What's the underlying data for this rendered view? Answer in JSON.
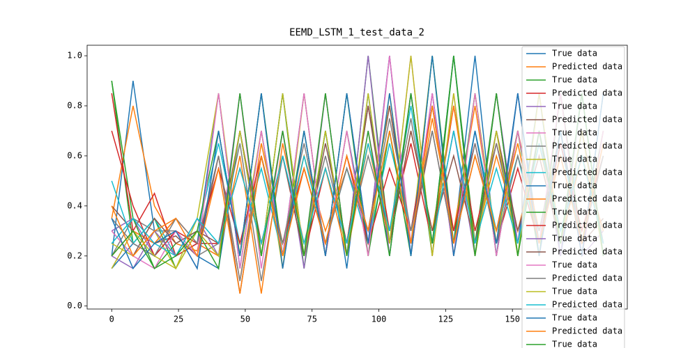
{
  "chart_data": {
    "type": "line",
    "title": "EEMD_LSTM_1_test_data_2",
    "x": [
      0,
      8,
      16,
      24,
      32,
      40,
      48,
      56,
      64,
      72,
      80,
      88,
      96,
      104,
      112,
      120,
      128,
      136,
      144,
      152,
      160,
      168,
      176,
      184
    ],
    "xlim": [
      -9.2,
      193
    ],
    "xticks": [
      0,
      25,
      50,
      75,
      100,
      125,
      150
    ],
    "ylim": [
      -0.012,
      1.042
    ],
    "yticks": [
      {
        "value": 0,
        "label": "0.0"
      },
      {
        "value": 0.2,
        "label": "0.2"
      },
      {
        "value": 0.4,
        "label": "0.4"
      },
      {
        "value": 0.6,
        "label": "0.6"
      },
      {
        "value": 0.8,
        "label": "0.8"
      },
      {
        "value": 1,
        "label": "1.0"
      }
    ],
    "legend": "upper right",
    "series": [
      {
        "name": "True data",
        "color": "#1f77b4",
        "values": [
          0.2,
          0.9,
          0.3,
          0.2,
          0.25,
          0.85,
          0.15,
          0.7,
          0.2,
          0.85,
          0.2,
          0.7,
          0.25,
          1.0,
          0.2,
          0.85,
          0.25,
          1.0,
          0.2,
          0.85,
          0.25,
          0.7,
          0.2,
          0.85
        ]
      },
      {
        "name": "Predicted data",
        "color": "#ff7f0e",
        "values": [
          0.35,
          0.8,
          0.4,
          0.25,
          0.22,
          0.6,
          0.1,
          0.65,
          0.25,
          0.6,
          0.3,
          0.55,
          0.3,
          0.8,
          0.25,
          0.75,
          0.3,
          0.8,
          0.25,
          0.7,
          0.3,
          0.6,
          0.25,
          0.7
        ]
      },
      {
        "name": "True data",
        "color": "#2ca02c",
        "values": [
          0.9,
          0.25,
          0.35,
          0.15,
          0.3,
          0.2,
          0.7,
          0.2,
          0.85,
          0.15,
          0.7,
          0.2,
          1.0,
          0.25,
          0.85,
          0.2,
          1.0,
          0.25,
          0.85,
          0.2,
          0.7,
          0.2,
          0.85,
          0.2
        ]
      },
      {
        "name": "Predicted data",
        "color": "#d62728",
        "values": [
          0.85,
          0.3,
          0.45,
          0.2,
          0.25,
          0.25,
          0.55,
          0.25,
          0.6,
          0.2,
          0.55,
          0.25,
          0.8,
          0.3,
          0.65,
          0.25,
          0.8,
          0.3,
          0.65,
          0.3,
          0.6,
          0.25,
          0.7,
          0.25
        ]
      },
      {
        "name": "True data",
        "color": "#9467bd",
        "values": [
          0.3,
          0.35,
          0.2,
          0.3,
          0.15,
          0.7,
          0.2,
          0.85,
          0.15,
          0.7,
          0.2,
          0.85,
          0.25,
          1.0,
          0.2,
          0.85,
          0.2,
          0.7,
          0.25,
          0.85,
          0.2,
          0.7,
          0.2,
          0.3
        ]
      },
      {
        "name": "Predicted data",
        "color": "#8c564b",
        "values": [
          0.4,
          0.3,
          0.25,
          0.28,
          0.2,
          0.6,
          0.05,
          0.6,
          0.2,
          0.55,
          0.25,
          0.6,
          0.3,
          0.8,
          0.25,
          0.7,
          0.25,
          0.6,
          0.3,
          0.7,
          0.25,
          0.6,
          0.25,
          0.35
        ]
      },
      {
        "name": "True data",
        "color": "#e377c2",
        "values": [
          0.15,
          0.3,
          0.25,
          0.35,
          0.25,
          0.2,
          0.85,
          0.15,
          0.7,
          0.2,
          0.85,
          0.2,
          0.7,
          0.25,
          1.0,
          0.2,
          0.85,
          0.2,
          0.85,
          0.2,
          0.85,
          0.25,
          0.7,
          0.2
        ]
      },
      {
        "name": "Predicted data",
        "color": "#7f7f7f",
        "values": [
          0.2,
          0.35,
          0.3,
          0.3,
          0.2,
          0.25,
          0.65,
          0.1,
          0.6,
          0.25,
          0.6,
          0.25,
          0.6,
          0.3,
          0.75,
          0.25,
          0.7,
          0.25,
          0.65,
          0.25,
          0.7,
          0.3,
          0.6,
          0.25
        ]
      },
      {
        "name": "True data",
        "color": "#bcbd22",
        "values": [
          0.25,
          0.2,
          0.3,
          0.15,
          0.35,
          0.85,
          0.2,
          0.7,
          0.15,
          0.85,
          0.2,
          0.7,
          0.2,
          0.85,
          0.25,
          1.0,
          0.2,
          0.85,
          0.25,
          0.7,
          0.2,
          0.85,
          0.2,
          0.7
        ]
      },
      {
        "name": "Predicted data",
        "color": "#17becf",
        "values": [
          0.5,
          0.25,
          0.35,
          0.2,
          0.3,
          0.65,
          0.25,
          0.55,
          0.2,
          0.6,
          0.25,
          0.55,
          0.25,
          0.65,
          0.3,
          0.8,
          0.25,
          0.7,
          0.3,
          0.6,
          0.25,
          0.65,
          0.25,
          0.6
        ]
      },
      {
        "name": "True data",
        "color": "#1f77b4",
        "values": [
          0.15,
          0.25,
          0.2,
          0.3,
          0.2,
          0.15,
          0.7,
          0.2,
          0.85,
          0.2,
          0.7,
          0.15,
          0.85,
          0.2,
          0.85,
          0.25,
          1.0,
          0.2,
          0.7,
          0.25,
          0.85,
          0.2,
          0.7,
          0.25
        ]
      },
      {
        "name": "Predicted data",
        "color": "#ff7f0e",
        "values": [
          0.2,
          0.3,
          0.25,
          0.35,
          0.25,
          0.2,
          0.6,
          0.05,
          0.65,
          0.25,
          0.55,
          0.2,
          0.65,
          0.25,
          0.7,
          0.3,
          0.8,
          0.25,
          0.6,
          0.3,
          0.65,
          0.25,
          0.6,
          0.3
        ]
      },
      {
        "name": "True data",
        "color": "#2ca02c",
        "values": [
          0.9,
          0.35,
          0.15,
          0.25,
          0.3,
          0.7,
          0.2,
          0.85,
          0.2,
          0.7,
          0.2,
          0.85,
          0.2,
          0.7,
          0.2,
          1.0,
          0.25,
          0.85,
          0.2,
          0.7,
          0.2,
          0.85,
          0.25,
          0.7
        ]
      },
      {
        "name": "Predicted data",
        "color": "#d62728",
        "values": [
          0.7,
          0.4,
          0.2,
          0.3,
          0.25,
          0.55,
          0.25,
          0.6,
          0.25,
          0.55,
          0.25,
          0.6,
          0.25,
          0.55,
          0.3,
          0.8,
          0.3,
          0.65,
          0.25,
          0.55,
          0.25,
          0.65,
          0.3,
          0.6
        ]
      },
      {
        "name": "True data",
        "color": "#9467bd",
        "values": [
          0.2,
          0.15,
          0.3,
          0.2,
          0.35,
          0.2,
          0.85,
          0.2,
          0.7,
          0.15,
          0.85,
          0.2,
          1.0,
          0.2,
          0.85,
          0.25,
          0.7,
          0.2,
          0.85,
          0.25,
          0.7,
          0.2,
          0.85,
          0.2
        ]
      },
      {
        "name": "Predicted data",
        "color": "#8c564b",
        "values": [
          0.3,
          0.2,
          0.35,
          0.25,
          0.3,
          0.25,
          0.7,
          0.25,
          0.6,
          0.2,
          0.65,
          0.25,
          0.8,
          0.25,
          0.7,
          0.3,
          0.6,
          0.25,
          0.7,
          0.3,
          0.6,
          0.25,
          0.7,
          0.25
        ]
      },
      {
        "name": "True data",
        "color": "#e377c2",
        "values": [
          0.3,
          0.2,
          0.15,
          0.3,
          0.2,
          0.85,
          0.15,
          0.7,
          0.2,
          0.85,
          0.2,
          0.7,
          0.2,
          1.0,
          0.25,
          0.85,
          0.2,
          0.85,
          0.2,
          0.7,
          0.25,
          0.85,
          0.2,
          0.7
        ]
      },
      {
        "name": "Predicted data",
        "color": "#7f7f7f",
        "values": [
          0.35,
          0.25,
          0.2,
          0.35,
          0.25,
          0.6,
          0.1,
          0.6,
          0.25,
          0.65,
          0.25,
          0.55,
          0.3,
          0.75,
          0.3,
          0.7,
          0.25,
          0.65,
          0.25,
          0.6,
          0.3,
          0.7,
          0.25,
          0.6
        ]
      },
      {
        "name": "True data",
        "color": "#bcbd22",
        "values": [
          0.15,
          0.3,
          0.2,
          0.15,
          0.3,
          0.2,
          0.7,
          0.2,
          0.85,
          0.2,
          0.7,
          0.2,
          0.85,
          0.25,
          1.0,
          0.2,
          0.85,
          0.2,
          0.7,
          0.2,
          0.85,
          0.25,
          0.7,
          0.2
        ]
      },
      {
        "name": "Predicted data",
        "color": "#17becf",
        "values": [
          0.25,
          0.35,
          0.25,
          0.2,
          0.35,
          0.25,
          0.55,
          0.25,
          0.6,
          0.25,
          0.55,
          0.25,
          0.65,
          0.3,
          0.8,
          0.25,
          0.7,
          0.25,
          0.55,
          0.25,
          0.65,
          0.3,
          0.6,
          0.25
        ]
      },
      {
        "name": "True data",
        "color": "#1f77b4",
        "values": [
          0.35,
          0.15,
          0.25,
          0.3,
          0.15,
          0.7,
          0.2,
          0.85,
          0.15,
          0.7,
          0.2,
          0.85,
          0.25,
          0.85,
          0.2,
          1.0,
          0.2,
          0.7,
          0.25,
          0.85,
          0.2,
          0.7,
          0.2,
          0.85
        ]
      },
      {
        "name": "Predicted data",
        "color": "#ff7f0e",
        "values": [
          0.4,
          0.2,
          0.3,
          0.35,
          0.2,
          0.55,
          0.05,
          0.6,
          0.2,
          0.55,
          0.25,
          0.6,
          0.3,
          0.7,
          0.25,
          0.8,
          0.25,
          0.6,
          0.3,
          0.65,
          0.25,
          0.6,
          0.25,
          0.65
        ]
      },
      {
        "name": "True data",
        "color": "#2ca02c",
        "values": [
          0.2,
          0.3,
          0.15,
          0.2,
          0.3,
          0.15,
          0.85,
          0.2,
          0.7,
          0.2,
          0.85,
          0.2,
          0.7,
          0.2,
          0.85,
          0.25,
          1.0,
          0.2,
          0.85,
          0.2,
          0.7,
          0.25,
          0.85,
          0.2
        ]
      }
    ]
  }
}
